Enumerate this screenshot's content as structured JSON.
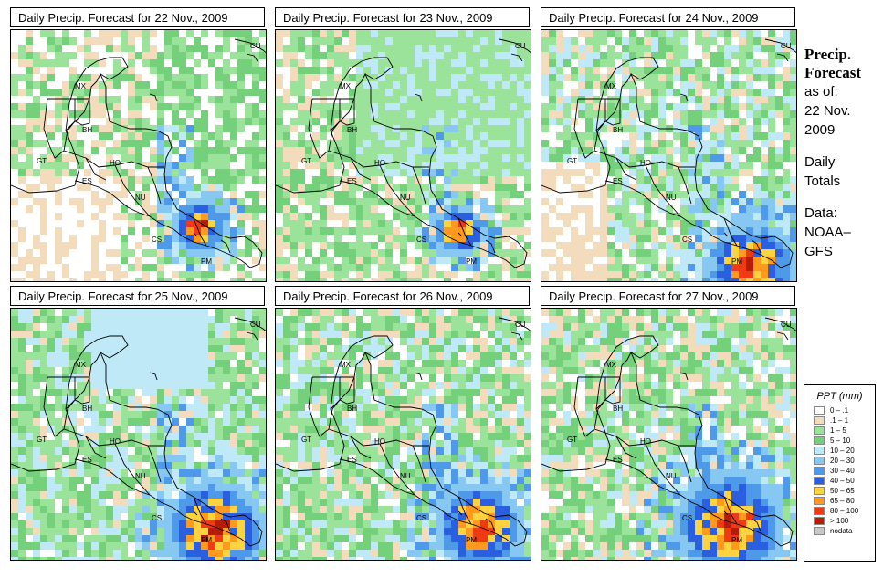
{
  "panels": [
    {
      "title": "Daily Precip. Forecast for  22 Nov., 2009",
      "seed": 11,
      "profile": "d22"
    },
    {
      "title": "Daily Precip. Forecast for  23 Nov., 2009",
      "seed": 23,
      "profile": "d23"
    },
    {
      "title": "Daily Precip. Forecast for  24 Nov., 2009",
      "seed": 37,
      "profile": "d24"
    },
    {
      "title": "Daily Precip. Forecast for  25 Nov., 2009",
      "seed": 41,
      "profile": "d25"
    },
    {
      "title": "Daily Precip. Forecast for  26 Nov., 2009",
      "seed": 53,
      "profile": "d26"
    },
    {
      "title": "Daily Precip. Forecast for  27 Nov., 2009",
      "seed": 67,
      "profile": "d27"
    }
  ],
  "country_labels": [
    "MX",
    "BH",
    "GT",
    "HO",
    "ES",
    "NU",
    "CS",
    "PM",
    "CU"
  ],
  "side_info": {
    "title_line1": "Precip.",
    "title_line2": "Forecast",
    "asof_line1": "as of:",
    "asof_line2": "22 Nov.",
    "asof_line3": "2009",
    "daily_line1": "Daily",
    "daily_line2": "Totals",
    "data_line1": "Data:",
    "data_line2": "NOAA–",
    "data_line3": "GFS"
  },
  "legend": {
    "title": "PPT (mm)",
    "items": [
      {
        "label": "0 – .1",
        "color": "#ffffff"
      },
      {
        "label": ".1 – 1",
        "color": "#f2dcbc"
      },
      {
        "label": "1 – 5",
        "color": "#9be39b"
      },
      {
        "label": "5 – 10",
        "color": "#74d07a"
      },
      {
        "label": "10 – 20",
        "color": "#bfe9f7"
      },
      {
        "label": "20 – 30",
        "color": "#86c8f2"
      },
      {
        "label": "30 – 40",
        "color": "#4f9ae8"
      },
      {
        "label": "40 – 50",
        "color": "#2a5fe0"
      },
      {
        "label": "50 – 65",
        "color": "#ffd23f"
      },
      {
        "label": "65 – 80",
        "color": "#ff9a1e"
      },
      {
        "label": "80 – 100",
        "color": "#ef3a16"
      },
      {
        "label": "> 100",
        "color": "#b51c0a"
      },
      {
        "label": "nodata",
        "color": "#c8c8c8"
      }
    ]
  }
}
